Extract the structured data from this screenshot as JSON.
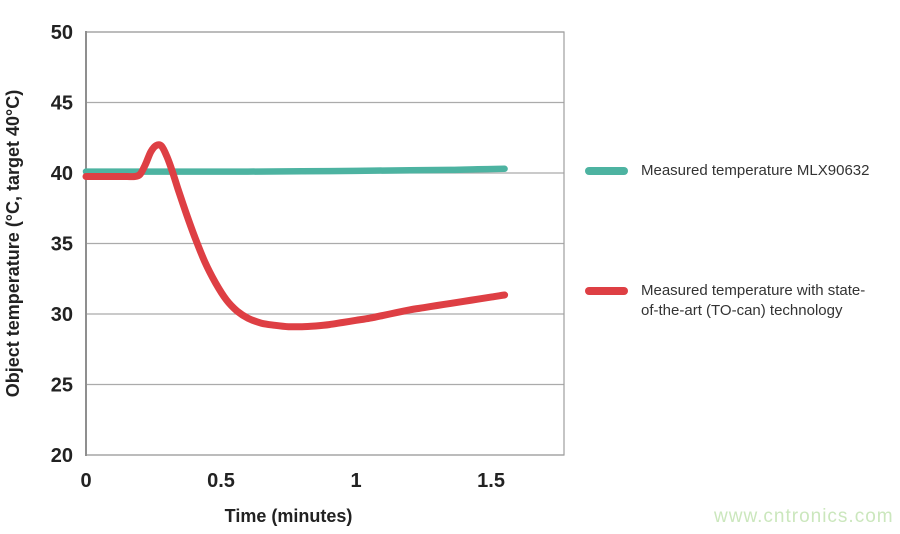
{
  "watermark": {
    "text": "www.cntronics.com",
    "color": "#cbe7bd"
  },
  "legend": {
    "items": [
      {
        "id": "mlx90632",
        "color": "#4db3a1",
        "label": "Measured temperature MLX90632",
        "lines": [
          "Measured temperature MLX90632"
        ]
      },
      {
        "id": "to-can",
        "color": "#de3f44",
        "label": "Measured temperature with state-of-the-art (TO-can) technology",
        "lines": [
          "Measured temperature with state-",
          "of-the-art (TO-can) technology"
        ]
      }
    ]
  },
  "chart_data": {
    "type": "line",
    "title": "",
    "xlabel": "Time (minutes)",
    "ylabel": "Object temperature (°C, target 40°C)",
    "xlim": [
      0,
      1.77
    ],
    "ylim": [
      20,
      50
    ],
    "xticks": [
      0,
      0.5,
      1,
      1.5
    ],
    "xtick_labels": [
      "0",
      "0.5",
      "1",
      "1.5"
    ],
    "yticks": [
      50,
      45,
      40,
      35,
      30,
      25,
      20
    ],
    "ytick_labels": [
      "50",
      "45",
      "40",
      "35",
      "30",
      "25",
      "20"
    ],
    "grid": true,
    "grid_color": "#ababab",
    "border_color": "#9e9e9e",
    "legend_position": "right",
    "series": [
      {
        "id": "mlx90632",
        "name": "Measured temperature MLX90632",
        "color": "#4db3a1",
        "line_width": 6.5,
        "x": [
          0,
          0.2,
          0.4,
          0.6,
          0.8,
          1.0,
          1.2,
          1.35,
          1.45,
          1.55
        ],
        "y": [
          40.1,
          40.1,
          40.1,
          40.1,
          40.12,
          40.15,
          40.2,
          40.22,
          40.26,
          40.3
        ]
      },
      {
        "id": "to-can",
        "name": "Measured temperature with state-of-the-art (TO-can) technology",
        "color": "#de3f44",
        "line_width": 7,
        "x": [
          0,
          0.05,
          0.1,
          0.15,
          0.18,
          0.2,
          0.22,
          0.24,
          0.26,
          0.28,
          0.3,
          0.32,
          0.34,
          0.37,
          0.4,
          0.44,
          0.48,
          0.52,
          0.56,
          0.6,
          0.65,
          0.7,
          0.75,
          0.8,
          0.85,
          0.9,
          0.95,
          1.0,
          1.05,
          1.1,
          1.15,
          1.2,
          1.25,
          1.3,
          1.35,
          1.4,
          1.45,
          1.5,
          1.55
        ],
        "y": [
          39.75,
          39.75,
          39.75,
          39.75,
          39.75,
          39.9,
          40.6,
          41.5,
          41.95,
          41.9,
          41.15,
          40.1,
          38.9,
          37.2,
          35.6,
          33.7,
          32.2,
          31.0,
          30.2,
          29.7,
          29.35,
          29.2,
          29.1,
          29.1,
          29.15,
          29.25,
          29.4,
          29.55,
          29.7,
          29.9,
          30.1,
          30.3,
          30.45,
          30.6,
          30.75,
          30.9,
          31.05,
          31.2,
          31.35
        ]
      }
    ]
  }
}
